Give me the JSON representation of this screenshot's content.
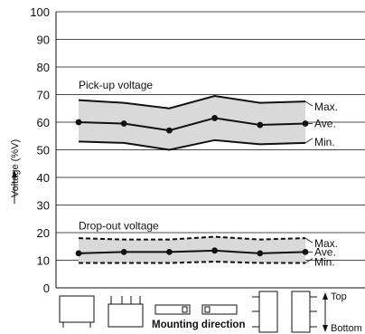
{
  "chart_data": {
    "type": "line",
    "ylabel": "Voltage (%V)",
    "ylim": [
      0,
      100
    ],
    "yticks": [
      0,
      10,
      20,
      30,
      40,
      50,
      60,
      70,
      80,
      90,
      100
    ],
    "grid": true,
    "x": [
      1,
      2,
      3,
      4,
      5,
      6
    ],
    "xlabel": "Mounting direction",
    "groups": [
      {
        "label": "Pick-up voltage",
        "band_fill": "#d9d9d9",
        "series": [
          {
            "name": "Max.",
            "style": "solid",
            "markers": false,
            "values": [
              68,
              67,
              65,
              69.5,
              67,
              67.5
            ]
          },
          {
            "name": "Ave.",
            "style": "solid",
            "markers": true,
            "values": [
              60,
              59.5,
              57,
              61.5,
              59,
              59.5
            ]
          },
          {
            "name": "Min.",
            "style": "solid",
            "markers": false,
            "values": [
              53,
              52.5,
              50,
              53.5,
              52,
              52.5
            ]
          }
        ]
      },
      {
        "label": "Drop-out voltage",
        "band_fill": "#d9d9d9",
        "series": [
          {
            "name": "Max.",
            "style": "dashed",
            "markers": false,
            "values": [
              18,
              17.5,
              17.5,
              18.5,
              17.5,
              18
            ]
          },
          {
            "name": "Ave.",
            "style": "solid",
            "markers": true,
            "values": [
              12.5,
              13,
              13,
              13.5,
              12.5,
              13
            ]
          },
          {
            "name": "Min.",
            "style": "dashed",
            "markers": false,
            "values": [
              9,
              9,
              9,
              9.5,
              9,
              9
            ]
          }
        ]
      }
    ],
    "orientation_labels": {
      "top": "Top",
      "bottom": "Bottom"
    }
  }
}
